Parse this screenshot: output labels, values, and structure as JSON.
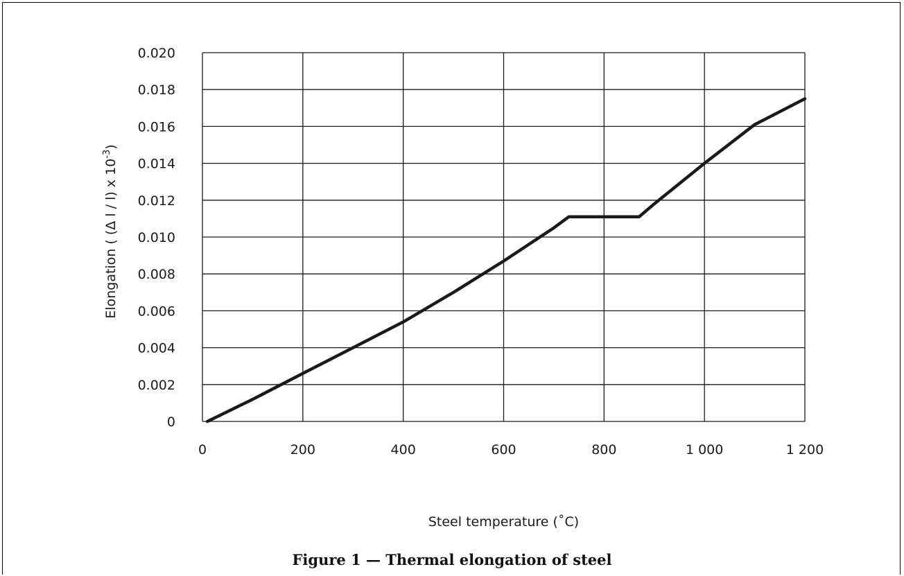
{
  "caption": "Figure 1 — Thermal elongation of steel",
  "chart_data": {
    "type": "line",
    "xlabel": "Steel temperature (˚C)",
    "ylabel_main": "Elongation ( (Δ l / l) x 10",
    "ylabel_sup": "-3",
    "ylabel_end": ")",
    "xlim": [
      0,
      1200
    ],
    "ylim": [
      0,
      0.02
    ],
    "grid": true,
    "x_ticks": [
      0,
      200,
      400,
      600,
      800,
      1000,
      1200
    ],
    "x_tick_labels": [
      "0",
      "200",
      "400",
      "600",
      "800",
      "1 000",
      "1 200"
    ],
    "y_ticks": [
      0,
      0.002,
      0.004,
      0.006,
      0.008,
      0.01,
      0.012,
      0.014,
      0.016,
      0.018,
      0.02
    ],
    "y_tick_labels": [
      "0",
      "0.002",
      "0.004",
      "0.006",
      "0.008",
      "0.010",
      "0.012",
      "0.014",
      "0.016",
      "0.018",
      "0.020"
    ],
    "series": [
      {
        "color": "#1a1a1a",
        "x": [
          10,
          100,
          200,
          300,
          400,
          500,
          600,
          700,
          730,
          870,
          900,
          1000,
          1100,
          1200
        ],
        "y": [
          0.0,
          0.0012,
          0.0026,
          0.004,
          0.0054,
          0.007,
          0.0087,
          0.0105,
          0.0111,
          0.0111,
          0.0118,
          0.014,
          0.0161,
          0.0175
        ]
      }
    ]
  }
}
